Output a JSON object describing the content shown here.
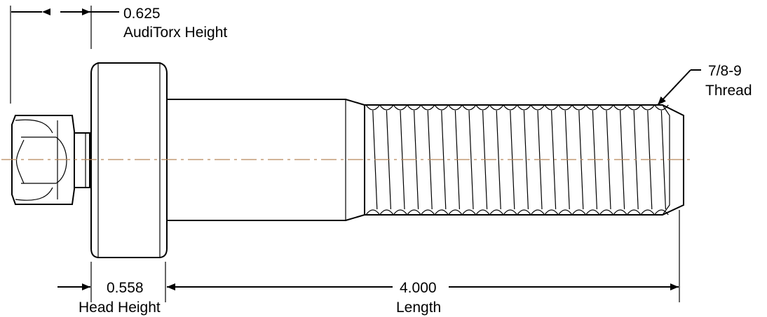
{
  "dimensions": {
    "auditorx_height": {
      "value": "0.625",
      "label": "AudiTorx Height"
    },
    "head_height": {
      "value": "0.558",
      "label": "Head Height"
    },
    "length": {
      "value": "4.000",
      "label": "Length"
    },
    "thread": {
      "value": "7/8-9",
      "label": "Thread"
    }
  },
  "colors": {
    "centerline": "#b8865a",
    "outline": "#000000"
  }
}
